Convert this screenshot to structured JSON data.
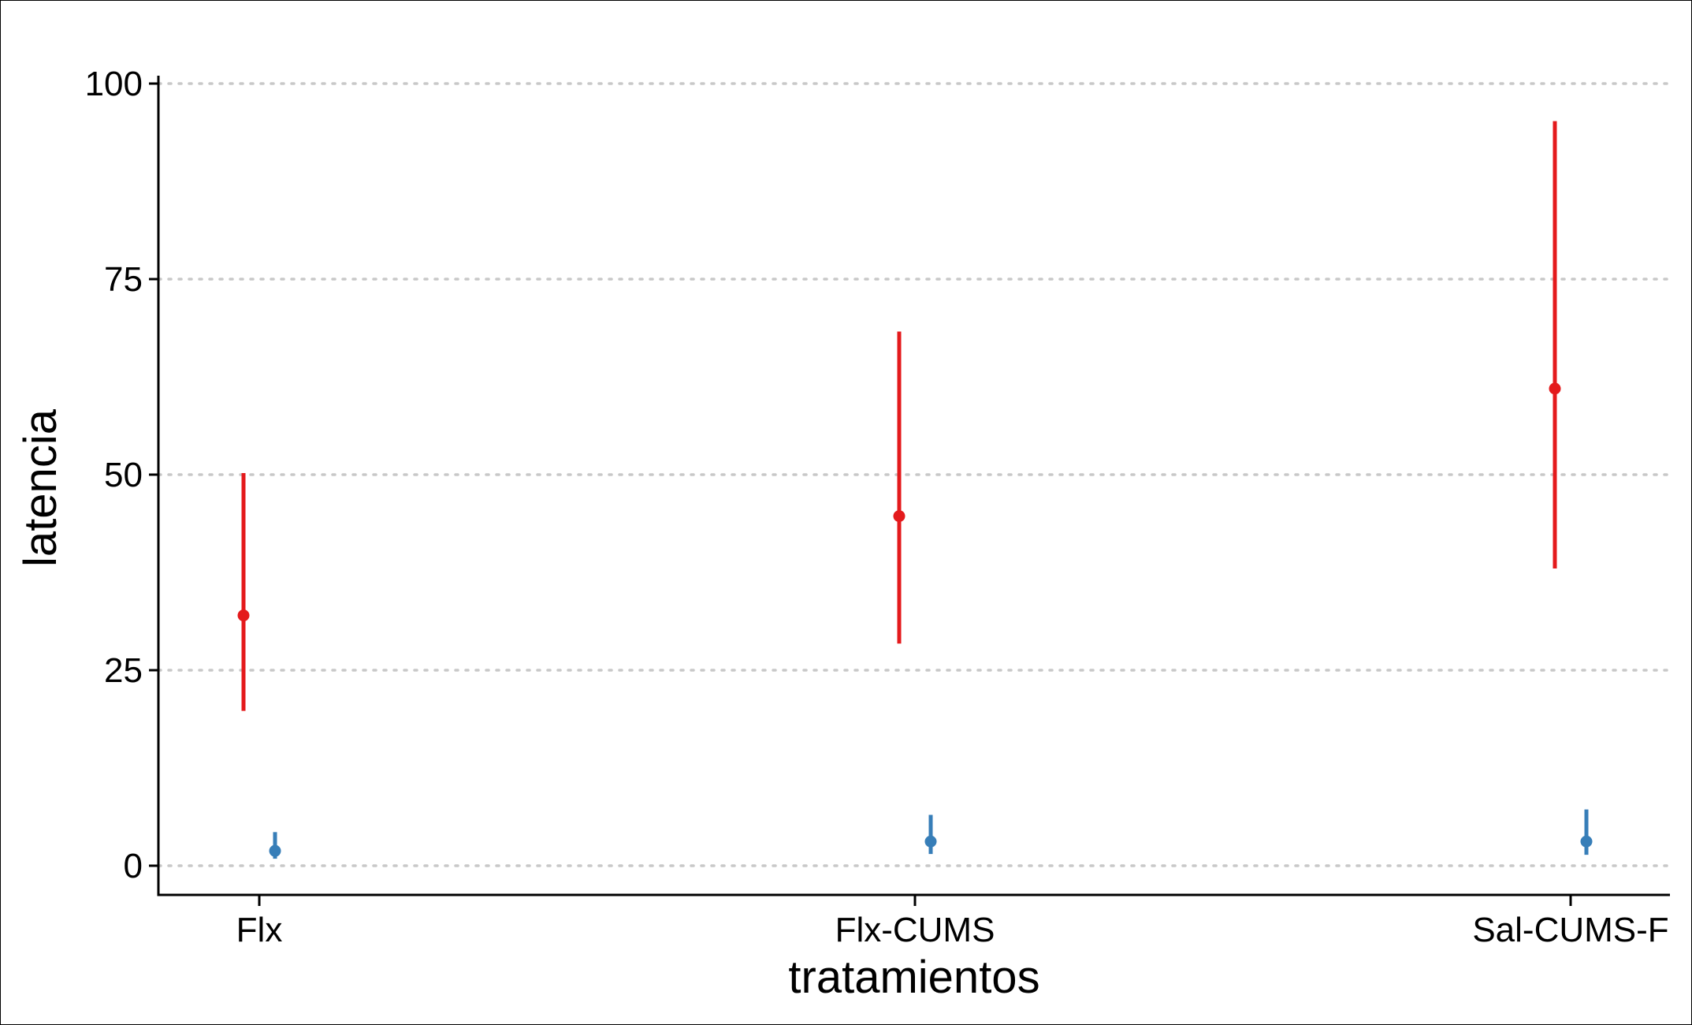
{
  "chart_data": {
    "type": "scatter",
    "title": "",
    "xlabel": "tratamientos",
    "ylabel": "latencia",
    "categories": [
      "Flx",
      "Flx-CUMS",
      "Sal-CUMS-F"
    ],
    "ylim": [
      -3.5,
      100
    ],
    "yticks": [
      0,
      25,
      50,
      75,
      100
    ],
    "grid": "horizontal-dotted",
    "legend": "none",
    "series": [
      {
        "color": "#e41a1c",
        "points": [
          {
            "category": "Flx",
            "y": 32,
            "ymin": 19.8,
            "ymax": 50.2
          },
          {
            "category": "Flx-CUMS",
            "y": 44.7,
            "ymin": 28.4,
            "ymax": 68.3
          },
          {
            "category": "Sal-CUMS-F",
            "y": 61,
            "ymin": 38,
            "ymax": 95.2
          }
        ]
      },
      {
        "color": "#377eb8",
        "points": [
          {
            "category": "Flx",
            "y": 1.9,
            "ymin": 0.9,
            "ymax": 4.3
          },
          {
            "category": "Flx-CUMS",
            "y": 3.1,
            "ymin": 1.5,
            "ymax": 6.5
          },
          {
            "category": "Sal-CUMS-F",
            "y": 3.1,
            "ymin": 1.4,
            "ymax": 7.2
          }
        ]
      }
    ]
  }
}
